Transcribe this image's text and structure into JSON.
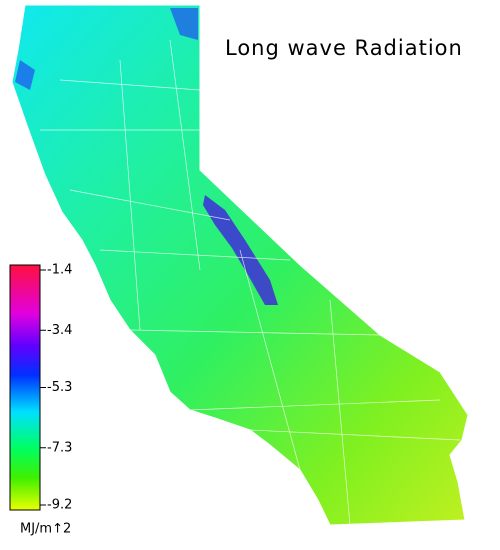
{
  "title": "Long wave Radiation",
  "legend": {
    "ticks": [
      -1.4,
      -3.4,
      -5.3,
      -7.3,
      -9.2
    ],
    "unit": "MJ/m↑2"
  }
}
